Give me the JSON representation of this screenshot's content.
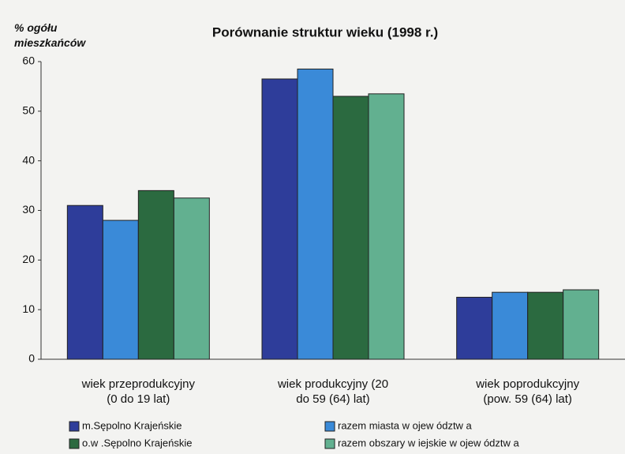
{
  "chart_data": {
    "type": "bar",
    "title": "Porównanie struktur wieku (1998 r.)",
    "y_label": "% ogółu\nmieszkańców",
    "categories": [
      "wiek przeprodukcyjny\n(0 do 19 lat)",
      "wiek produkcyjny (20\ndo 59 (64) lat)",
      "wiek poprodukcyjny\n(pow. 59 (64) lat)"
    ],
    "series": [
      {
        "name": "m.Sępolno Krajeńskie",
        "color": "#2e3d9a",
        "values": [
          31,
          56.5,
          12.5
        ]
      },
      {
        "name": "razem miasta w ojew ództw a",
        "color": "#3a8ad8",
        "values": [
          28,
          58.5,
          13.5
        ]
      },
      {
        "name": "o.w .Sępolno Krajeńskie",
        "color": "#2b6a40",
        "values": [
          34,
          53,
          13.5
        ]
      },
      {
        "name": "razem obszary w iejskie w ojew ództw a",
        "color": "#62b090",
        "values": [
          32.5,
          53.5,
          14
        ]
      }
    ],
    "ylim": [
      0,
      60
    ],
    "yticks": [
      0,
      10,
      20,
      30,
      40,
      50,
      60
    ],
    "grid": false,
    "legend": "bottom"
  }
}
